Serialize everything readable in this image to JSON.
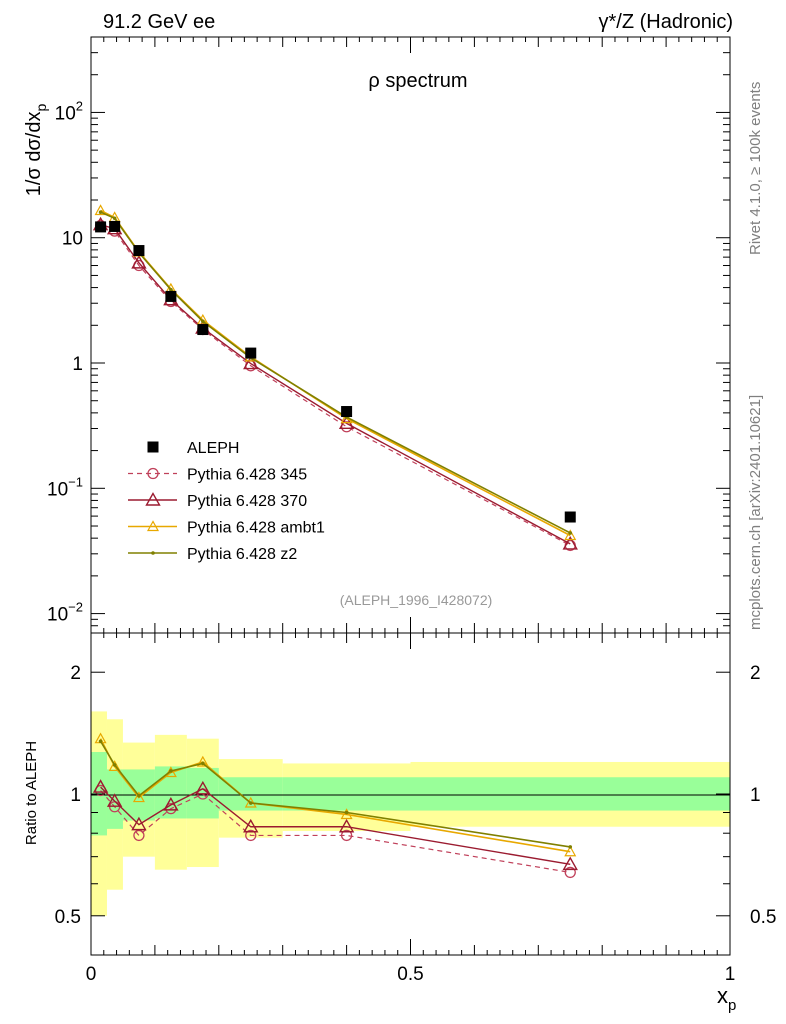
{
  "header": {
    "left": "91.2 GeV ee",
    "right": "γ*/Z (Hadronic)"
  },
  "side": {
    "top": "Rivet 4.1.0, ≥ 100k events",
    "bottom": "mcplots.cern.ch [arXiv:2401.10621]"
  },
  "colors": {
    "aleph": "#000000",
    "p345": "#c0405a",
    "p370": "#9b1b30",
    "ambt1": "#e8a800",
    "z2": "#808000",
    "band_inner": "#99ff99",
    "band_outer": "#ffff99"
  },
  "chart_data": [
    {
      "type": "line",
      "panel": "main",
      "title": "ρ spectrum",
      "ylabel": "1/σ  dσ/dx_p",
      "xlabel": "x_p",
      "yscale": "log",
      "xlim": [
        0,
        1
      ],
      "ylim": [
        0.007,
        400
      ],
      "y_ticks": [
        {
          "value": 100,
          "base": "10",
          "exp": "2"
        },
        {
          "value": 10,
          "base": "10",
          "exp": ""
        },
        {
          "value": 1,
          "base": "1",
          "exp": ""
        },
        {
          "value": 0.1,
          "base": "10",
          "exp": "−1"
        },
        {
          "value": 0.01,
          "base": "10",
          "exp": "−2"
        }
      ],
      "annotation": "(ALEPH_1996_I428072)",
      "legend_position": "center-left",
      "legend": [
        "ALEPH",
        "Pythia 6.428 345",
        "Pythia 6.428 370",
        "Pythia 6.428 ambt1",
        "Pythia 6.428 z2"
      ],
      "x": [
        0.015,
        0.037,
        0.075,
        0.125,
        0.175,
        0.25,
        0.4,
        0.75
      ],
      "series": [
        {
          "name": "ALEPH",
          "style": "square",
          "values": [
            12.2,
            12.3,
            7.9,
            3.4,
            1.85,
            1.2,
            0.41,
            0.059
          ]
        },
        {
          "name": "Pythia 6.428 345",
          "style": "circle-dashed",
          "values": [
            12.5,
            11.3,
            6.0,
            3.1,
            1.85,
            0.95,
            0.31,
            0.035
          ]
        },
        {
          "name": "Pythia 6.428 370",
          "style": "triangle",
          "values": [
            12.7,
            11.8,
            6.3,
            3.2,
            1.9,
            0.99,
            0.33,
            0.036
          ]
        },
        {
          "name": "Pythia 6.428 ambt1",
          "style": "triangle-small",
          "values": [
            16.5,
            14.5,
            7.7,
            3.9,
            2.2,
            1.12,
            0.36,
            0.042
          ]
        },
        {
          "name": "Pythia 6.428 z2",
          "style": "dot",
          "values": [
            16.0,
            14.3,
            7.6,
            3.85,
            2.15,
            1.1,
            0.37,
            0.044
          ]
        }
      ]
    },
    {
      "type": "line",
      "panel": "ratio",
      "ylabel": "Ratio to ALEPH",
      "xlabel": "x_p",
      "yscale": "log",
      "xlim": [
        0,
        1
      ],
      "ylim": [
        0.4,
        2.5
      ],
      "y_ticks": [
        "0.5",
        "1",
        "2"
      ],
      "x_ticks": [
        "0",
        "0.5",
        "1"
      ],
      "bins": [
        [
          0.0,
          0.025
        ],
        [
          0.025,
          0.05
        ],
        [
          0.05,
          0.1
        ],
        [
          0.1,
          0.15
        ],
        [
          0.15,
          0.2
        ],
        [
          0.2,
          0.3
        ],
        [
          0.3,
          0.5
        ],
        [
          0.5,
          1.0
        ]
      ],
      "band_inner": [
        [
          0.79,
          1.27
        ],
        [
          0.82,
          1.15
        ],
        [
          0.86,
          1.15
        ],
        [
          0.87,
          1.17
        ],
        [
          0.87,
          1.16
        ],
        [
          0.91,
          1.1
        ],
        [
          0.91,
          1.1
        ],
        [
          0.91,
          1.1
        ]
      ],
      "band_outer": [
        [
          0.5,
          1.6
        ],
        [
          0.58,
          1.53
        ],
        [
          0.7,
          1.34
        ],
        [
          0.65,
          1.4
        ],
        [
          0.66,
          1.37
        ],
        [
          0.78,
          1.22
        ],
        [
          0.81,
          1.19
        ],
        [
          0.83,
          1.2
        ]
      ],
      "x": [
        0.015,
        0.037,
        0.075,
        0.125,
        0.175,
        0.25,
        0.4,
        0.75
      ],
      "series": [
        {
          "name": "Pythia 6.428 345",
          "values": [
            1.02,
            0.93,
            0.79,
            0.92,
            1.0,
            0.79,
            0.79,
            0.64
          ]
        },
        {
          "name": "Pythia 6.428 370",
          "values": [
            1.04,
            0.96,
            0.84,
            0.94,
            1.03,
            0.83,
            0.83,
            0.67
          ]
        },
        {
          "name": "Pythia 6.428 ambt1",
          "values": [
            1.37,
            1.17,
            0.98,
            1.13,
            1.2,
            0.95,
            0.89,
            0.72
          ]
        },
        {
          "name": "Pythia 6.428 z2",
          "values": [
            1.35,
            1.18,
            0.99,
            1.14,
            1.19,
            0.95,
            0.9,
            0.74
          ]
        }
      ]
    }
  ]
}
